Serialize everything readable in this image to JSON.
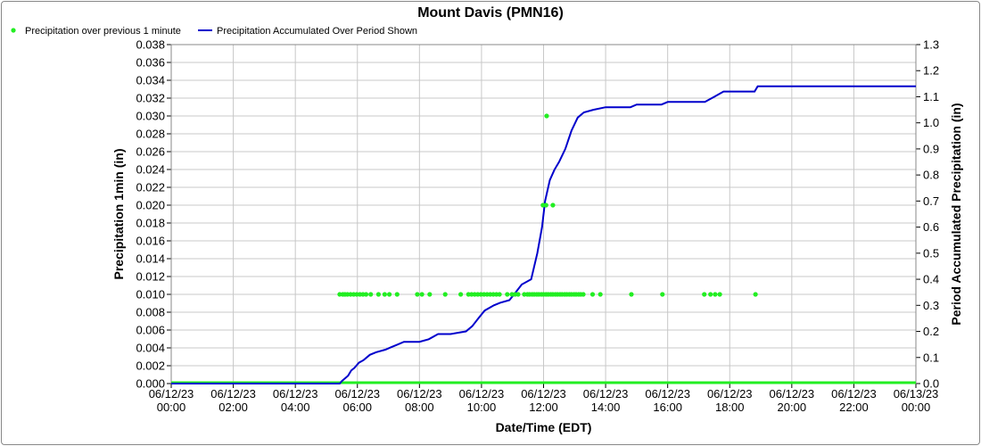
{
  "chart_data": {
    "type": "line",
    "title": "Mount Davis (PMN16)",
    "xlabel": "Date/Time (EDT)",
    "ylabel_left": "Precipitation 1min (in)",
    "ylabel_right": "Period Accumulated Precipitation (in)",
    "ylim_left": [
      0,
      0.038
    ],
    "ylim_right": [
      0,
      1.3
    ],
    "xlim_hours": [
      0,
      24
    ],
    "grid": true,
    "legend_placement": "top-left",
    "left_ticks": [
      "0.000",
      "0.002",
      "0.004",
      "0.006",
      "0.008",
      "0.010",
      "0.012",
      "0.014",
      "0.016",
      "0.018",
      "0.020",
      "0.022",
      "0.024",
      "0.026",
      "0.028",
      "0.030",
      "0.032",
      "0.034",
      "0.036",
      "0.038"
    ],
    "right_ticks": [
      "0.0",
      "0.1",
      "0.2",
      "0.3",
      "0.4",
      "0.5",
      "0.6",
      "0.7",
      "0.8",
      "0.9",
      "1.0",
      "1.1",
      "1.2",
      "1.3"
    ],
    "x_ticks": [
      {
        "date": "06/12/23",
        "time": "00:00"
      },
      {
        "date": "06/12/23",
        "time": "02:00"
      },
      {
        "date": "06/12/23",
        "time": "04:00"
      },
      {
        "date": "06/12/23",
        "time": "06:00"
      },
      {
        "date": "06/12/23",
        "time": "08:00"
      },
      {
        "date": "06/12/23",
        "time": "10:00"
      },
      {
        "date": "06/12/23",
        "time": "12:00"
      },
      {
        "date": "06/12/23",
        "time": "14:00"
      },
      {
        "date": "06/12/23",
        "time": "16:00"
      },
      {
        "date": "06/12/23",
        "time": "18:00"
      },
      {
        "date": "06/12/23",
        "time": "20:00"
      },
      {
        "date": "06/12/23",
        "time": "22:00"
      },
      {
        "date": "06/13/23",
        "time": "00:00"
      }
    ],
    "series": [
      {
        "name": "Precipitation over previous 1 minute",
        "color": "#22ee22",
        "type": "scatter",
        "points": [
          [
            5.43,
            0.01
          ],
          [
            5.53,
            0.01
          ],
          [
            5.6,
            0.01
          ],
          [
            5.68,
            0.01
          ],
          [
            5.78,
            0.01
          ],
          [
            5.88,
            0.01
          ],
          [
            5.98,
            0.01
          ],
          [
            6.08,
            0.01
          ],
          [
            6.18,
            0.01
          ],
          [
            6.28,
            0.01
          ],
          [
            6.43,
            0.01
          ],
          [
            6.68,
            0.01
          ],
          [
            6.88,
            0.01
          ],
          [
            7.03,
            0.01
          ],
          [
            7.28,
            0.01
          ],
          [
            7.93,
            0.01
          ],
          [
            8.08,
            0.01
          ],
          [
            8.33,
            0.01
          ],
          [
            8.83,
            0.01
          ],
          [
            9.33,
            0.01
          ],
          [
            9.58,
            0.01
          ],
          [
            9.68,
            0.01
          ],
          [
            9.78,
            0.01
          ],
          [
            9.88,
            0.01
          ],
          [
            9.98,
            0.01
          ],
          [
            10.08,
            0.01
          ],
          [
            10.18,
            0.01
          ],
          [
            10.28,
            0.01
          ],
          [
            10.38,
            0.01
          ],
          [
            10.48,
            0.01
          ],
          [
            10.58,
            0.01
          ],
          [
            10.83,
            0.01
          ],
          [
            10.98,
            0.01
          ],
          [
            11.08,
            0.01
          ],
          [
            11.18,
            0.01
          ],
          [
            11.38,
            0.01
          ],
          [
            11.48,
            0.01
          ],
          [
            11.55,
            0.01
          ],
          [
            11.63,
            0.01
          ],
          [
            11.7,
            0.01
          ],
          [
            11.78,
            0.01
          ],
          [
            11.85,
            0.01
          ],
          [
            11.93,
            0.01
          ],
          [
            12.0,
            0.01
          ],
          [
            12.08,
            0.01
          ],
          [
            12.15,
            0.01
          ],
          [
            12.23,
            0.01
          ],
          [
            12.3,
            0.01
          ],
          [
            12.38,
            0.01
          ],
          [
            12.45,
            0.01
          ],
          [
            12.53,
            0.01
          ],
          [
            12.6,
            0.01
          ],
          [
            12.68,
            0.01
          ],
          [
            12.75,
            0.01
          ],
          [
            12.83,
            0.01
          ],
          [
            12.9,
            0.01
          ],
          [
            12.98,
            0.01
          ],
          [
            13.05,
            0.01
          ],
          [
            13.13,
            0.01
          ],
          [
            13.2,
            0.01
          ],
          [
            13.28,
            0.01
          ],
          [
            13.58,
            0.01
          ],
          [
            13.83,
            0.01
          ],
          [
            14.83,
            0.01
          ],
          [
            15.83,
            0.01
          ],
          [
            17.18,
            0.01
          ],
          [
            17.38,
            0.01
          ],
          [
            17.53,
            0.01
          ],
          [
            17.68,
            0.01
          ],
          [
            18.83,
            0.01
          ],
          [
            11.98,
            0.02
          ],
          [
            12.08,
            0.02
          ],
          [
            12.3,
            0.02
          ],
          [
            12.1,
            0.03
          ],
          [
            0.0,
            0.0
          ],
          [
            24.0,
            0.0
          ]
        ]
      },
      {
        "name": "Precipitation Accumulated Over Period Shown",
        "color": "#0000cc",
        "type": "line",
        "points": [
          [
            0,
            0
          ],
          [
            5.43,
            0
          ],
          [
            5.5,
            0.01
          ],
          [
            5.6,
            0.02
          ],
          [
            5.7,
            0.03
          ],
          [
            5.8,
            0.05
          ],
          [
            5.9,
            0.06
          ],
          [
            6.05,
            0.08
          ],
          [
            6.2,
            0.09
          ],
          [
            6.4,
            0.11
          ],
          [
            6.6,
            0.12
          ],
          [
            6.9,
            0.13
          ],
          [
            7.1,
            0.14
          ],
          [
            7.3,
            0.15
          ],
          [
            7.5,
            0.16
          ],
          [
            8.0,
            0.16
          ],
          [
            8.3,
            0.17
          ],
          [
            8.6,
            0.19
          ],
          [
            9.0,
            0.19
          ],
          [
            9.5,
            0.2
          ],
          [
            9.7,
            0.22
          ],
          [
            9.9,
            0.25
          ],
          [
            10.1,
            0.28
          ],
          [
            10.4,
            0.3
          ],
          [
            10.6,
            0.31
          ],
          [
            10.9,
            0.32
          ],
          [
            11.1,
            0.35
          ],
          [
            11.3,
            0.38
          ],
          [
            11.6,
            0.4
          ],
          [
            11.8,
            0.5
          ],
          [
            11.95,
            0.6
          ],
          [
            12.05,
            0.7
          ],
          [
            12.2,
            0.78
          ],
          [
            12.35,
            0.82
          ],
          [
            12.5,
            0.85
          ],
          [
            12.7,
            0.9
          ],
          [
            12.9,
            0.97
          ],
          [
            13.1,
            1.02
          ],
          [
            13.3,
            1.04
          ],
          [
            13.6,
            1.05
          ],
          [
            14.0,
            1.06
          ],
          [
            14.8,
            1.06
          ],
          [
            15.0,
            1.07
          ],
          [
            15.8,
            1.07
          ],
          [
            16.0,
            1.08
          ],
          [
            17.2,
            1.08
          ],
          [
            17.5,
            1.1
          ],
          [
            17.8,
            1.12
          ],
          [
            18.4,
            1.12
          ],
          [
            18.8,
            1.12
          ],
          [
            18.9,
            1.14
          ],
          [
            24.0,
            1.14
          ]
        ]
      }
    ]
  }
}
